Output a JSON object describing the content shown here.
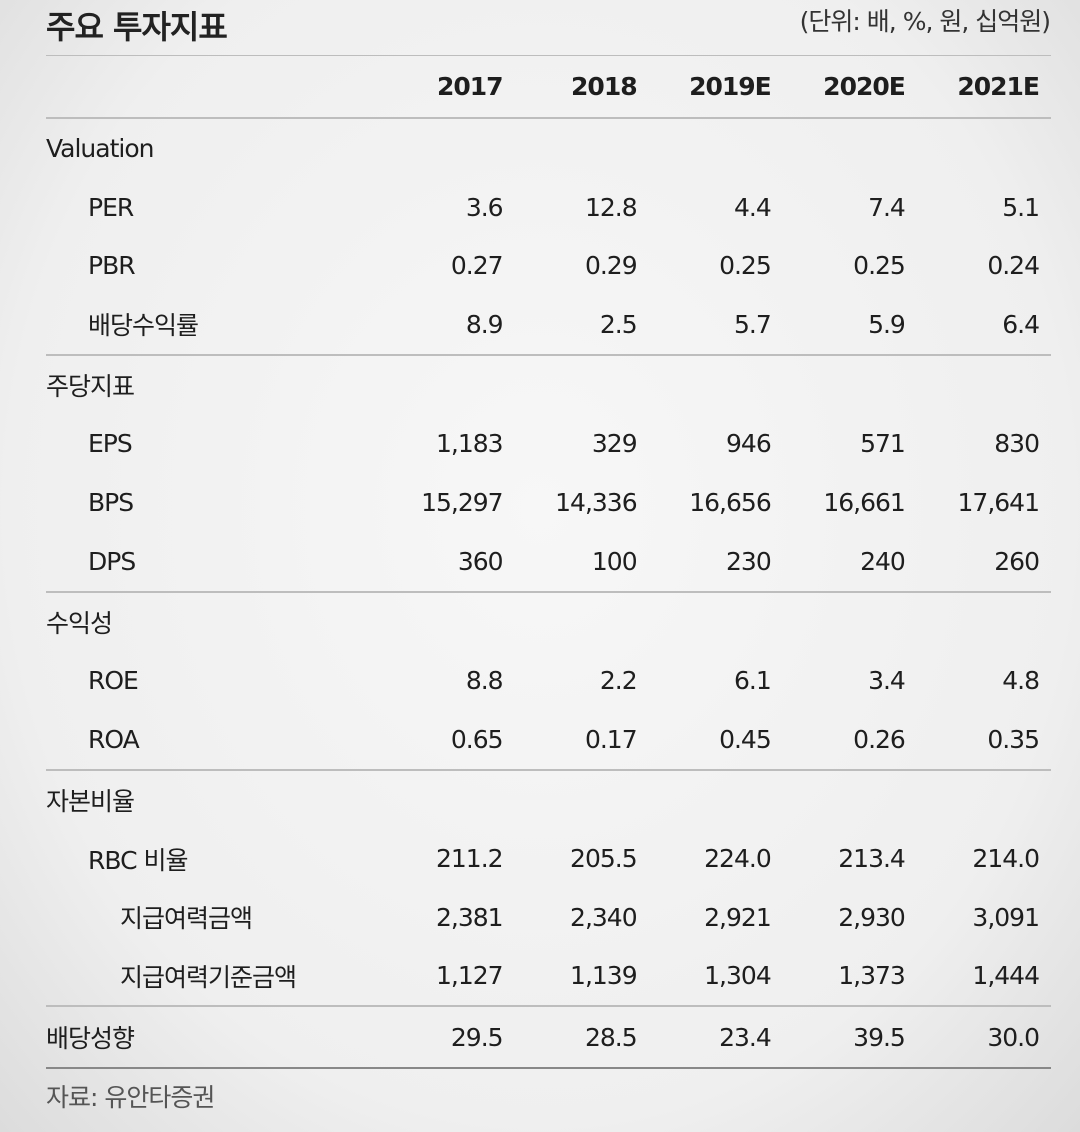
{
  "title": "주요 투자지표",
  "unit": "(단위: 배, %, 원, 십억원)",
  "columns": [
    "2017",
    "2018",
    "2019E",
    "2020E",
    "2021E"
  ],
  "sections": {
    "valuation": {
      "label": "Valuation",
      "rows": [
        {
          "label": "PER",
          "values": [
            "3.6",
            "12.8",
            "4.4",
            "7.4",
            "5.1"
          ]
        },
        {
          "label": "PBR",
          "values": [
            "0.27",
            "0.29",
            "0.25",
            "0.25",
            "0.24"
          ]
        },
        {
          "label": "배당수익률",
          "values": [
            "8.9",
            "2.5",
            "5.7",
            "5.9",
            "6.4"
          ]
        }
      ]
    },
    "per_share": {
      "label": "주당지표",
      "rows": [
        {
          "label": "EPS",
          "values": [
            "1,183",
            "329",
            "946",
            "571",
            "830"
          ]
        },
        {
          "label": "BPS",
          "values": [
            "15,297",
            "14,336",
            "16,656",
            "16,661",
            "17,641"
          ]
        },
        {
          "label": "DPS",
          "values": [
            "360",
            "100",
            "230",
            "240",
            "260"
          ]
        }
      ]
    },
    "profitability": {
      "label": "수익성",
      "rows": [
        {
          "label": "ROE",
          "values": [
            "8.8",
            "2.2",
            "6.1",
            "3.4",
            "4.8"
          ]
        },
        {
          "label": "ROA",
          "values": [
            "0.65",
            "0.17",
            "0.45",
            "0.26",
            "0.35"
          ]
        }
      ]
    },
    "capital": {
      "label": "자본비율",
      "rows": [
        {
          "label": "RBC 비율",
          "values": [
            "211.2",
            "205.5",
            "224.0",
            "213.4",
            "214.0"
          ]
        },
        {
          "label": "지급여력금액",
          "values": [
            "2,381",
            "2,340",
            "2,921",
            "2,930",
            "3,091"
          ]
        },
        {
          "label": "지급여력기준금액",
          "values": [
            "1,127",
            "1,139",
            "1,304",
            "1,373",
            "1,444"
          ]
        }
      ]
    }
  },
  "payout": {
    "label": "배당성향",
    "values": [
      "29.5",
      "28.5",
      "23.4",
      "39.5",
      "30.0"
    ]
  },
  "source": "자료: 유안타증권"
}
